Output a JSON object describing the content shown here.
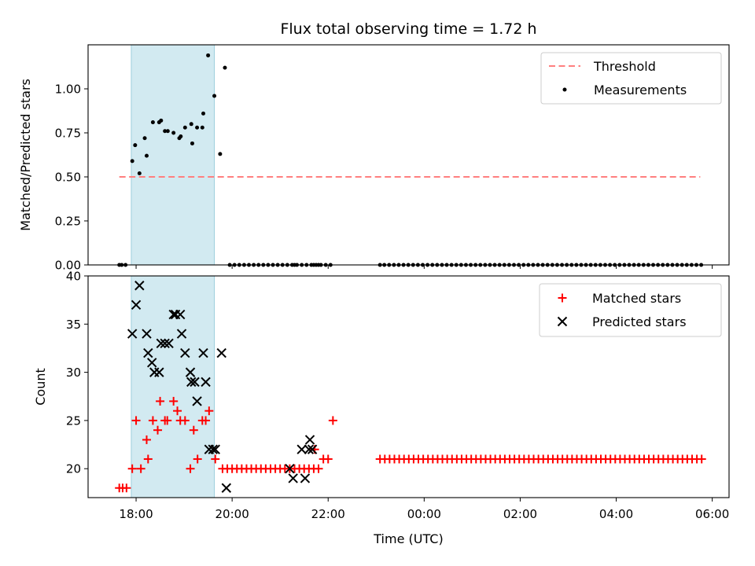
{
  "chart_data": [
    {
      "type": "scatter",
      "title": "Flux total observing time = 1.72 h",
      "xlabel": "",
      "ylabel": "Matched/Predicted stars",
      "xlim_hours": [
        17.0,
        30.35
      ],
      "ylim": [
        0,
        1.25
      ],
      "yticks": [
        0.0,
        0.25,
        0.5,
        0.75,
        1.0
      ],
      "ytick_labels": [
        "0.00",
        "0.25",
        "0.50",
        "0.75",
        "1.00"
      ],
      "shaded_span_hours": [
        17.9,
        19.63
      ],
      "threshold": {
        "label": "Threshold",
        "value": 0.5,
        "x_range_hours": [
          17.65,
          29.75
        ],
        "color": "#ff7f7f"
      },
      "legend": {
        "placement": "upper right",
        "entries": [
          "Threshold",
          "Measurements"
        ]
      },
      "series": [
        {
          "name": "Measurements",
          "color": "#000000",
          "x_hours": [
            17.65,
            17.7,
            17.78,
            17.92,
            17.98,
            18.07,
            18.18,
            18.22,
            18.35,
            18.48,
            18.52,
            18.6,
            18.66,
            18.78,
            18.9,
            18.93,
            19.02,
            19.15,
            19.17,
            19.27,
            19.38,
            19.4,
            19.5,
            19.63,
            19.75,
            19.85,
            19.95,
            20.05,
            20.15,
            20.25,
            20.35,
            20.45,
            20.55,
            20.65,
            20.75,
            20.85,
            20.95,
            21.05,
            21.15,
            21.25,
            21.3,
            21.35,
            21.45,
            21.55,
            21.65,
            21.7,
            21.75,
            21.8,
            21.85,
            21.95,
            22.05,
            23.08,
            23.17,
            23.27,
            23.37,
            23.47,
            23.57,
            23.67,
            23.77,
            23.87,
            23.97,
            24.07,
            24.17,
            24.27,
            24.37,
            24.47,
            24.57,
            24.67,
            24.77,
            24.87,
            24.97,
            25.07,
            25.17,
            25.27,
            25.37,
            25.47,
            25.57,
            25.67,
            25.77,
            25.87,
            25.97,
            26.07,
            26.17,
            26.27,
            26.37,
            26.47,
            26.57,
            26.67,
            26.77,
            26.87,
            26.97,
            27.07,
            27.17,
            27.27,
            27.37,
            27.47,
            27.57,
            27.67,
            27.77,
            27.87,
            27.97,
            28.07,
            28.17,
            28.27,
            28.37,
            28.47,
            28.57,
            28.67,
            28.77,
            28.87,
            28.97,
            29.07,
            29.17,
            29.27,
            29.37,
            29.47,
            29.57,
            29.67,
            29.77
          ],
          "y": [
            0,
            0,
            0,
            0.59,
            0.68,
            0.52,
            0.72,
            0.62,
            0.81,
            0.81,
            0.82,
            0.76,
            0.76,
            0.75,
            0.72,
            0.73,
            0.78,
            0.8,
            0.69,
            0.78,
            0.78,
            0.86,
            1.19,
            0.96,
            0.63,
            1.12,
            0,
            0,
            0,
            0,
            0,
            0,
            0,
            0,
            0,
            0,
            0,
            0,
            0,
            0,
            0,
            0,
            0,
            0,
            0,
            0,
            0,
            0,
            0,
            0,
            0,
            0,
            0,
            0,
            0,
            0,
            0,
            0,
            0,
            0,
            0,
            0,
            0,
            0,
            0,
            0,
            0,
            0,
            0,
            0,
            0,
            0,
            0,
            0,
            0,
            0,
            0,
            0,
            0,
            0,
            0,
            0,
            0,
            0,
            0,
            0,
            0,
            0,
            0,
            0,
            0,
            0,
            0,
            0,
            0,
            0,
            0,
            0,
            0,
            0,
            0,
            0,
            0,
            0,
            0,
            0,
            0,
            0,
            0,
            0,
            0,
            0,
            0,
            0,
            0,
            0,
            0,
            0,
            0
          ]
        }
      ]
    },
    {
      "type": "scatter",
      "title": "",
      "xlabel": "Time (UTC)",
      "ylabel": "Count",
      "xlim_hours": [
        17.0,
        30.35
      ],
      "ylim": [
        17,
        40
      ],
      "yticks": [
        20,
        25,
        30,
        35,
        40
      ],
      "ytick_labels": [
        "20",
        "25",
        "30",
        "35",
        "40"
      ],
      "xticks_hours": [
        18,
        20,
        22,
        24,
        26,
        28,
        30
      ],
      "xtick_labels": [
        "18:00",
        "20:00",
        "22:00",
        "00:00",
        "02:00",
        "04:00",
        "06:00"
      ],
      "shaded_span_hours": [
        17.9,
        19.63
      ],
      "legend": {
        "placement": "upper right",
        "entries": [
          "Matched stars",
          "Predicted stars"
        ]
      },
      "series": [
        {
          "name": "Matched stars",
          "color": "#ff0000",
          "marker": "plus",
          "x_hours": [
            17.65,
            17.72,
            17.8,
            17.92,
            18.0,
            18.1,
            18.22,
            18.25,
            18.35,
            18.45,
            18.5,
            18.6,
            18.65,
            18.78,
            18.86,
            18.92,
            19.02,
            19.13,
            19.2,
            19.28,
            19.38,
            19.45,
            19.52,
            19.65,
            19.8,
            19.9,
            20.0,
            20.1,
            20.2,
            20.3,
            20.4,
            20.5,
            20.6,
            20.7,
            20.8,
            20.9,
            21.0,
            21.1,
            21.2,
            21.3,
            21.4,
            21.5,
            21.6,
            21.7,
            21.72,
            21.8,
            21.9,
            22.0,
            22.1,
            23.08,
            23.18,
            23.28,
            23.38,
            23.48,
            23.58,
            23.68,
            23.78,
            23.88,
            23.98,
            24.08,
            24.18,
            24.28,
            24.38,
            24.48,
            24.58,
            24.68,
            24.78,
            24.88,
            24.98,
            25.08,
            25.18,
            25.28,
            25.38,
            25.48,
            25.58,
            25.68,
            25.78,
            25.88,
            25.98,
            26.08,
            26.18,
            26.28,
            26.38,
            26.48,
            26.58,
            26.68,
            26.78,
            26.88,
            26.98,
            27.08,
            27.18,
            27.28,
            27.38,
            27.48,
            27.58,
            27.68,
            27.78,
            27.88,
            27.98,
            28.08,
            28.18,
            28.28,
            28.38,
            28.48,
            28.58,
            28.68,
            28.78,
            28.88,
            28.98,
            29.08,
            29.18,
            29.28,
            29.38,
            29.48,
            29.58,
            29.68,
            29.78
          ],
          "y": [
            18,
            18,
            18,
            20,
            25,
            20,
            23,
            21,
            25,
            24,
            27,
            25,
            25,
            27,
            26,
            25,
            25,
            20,
            24,
            21,
            25,
            25,
            26,
            21,
            20,
            20,
            20,
            20,
            20,
            20,
            20,
            20,
            20,
            20,
            20,
            20,
            20,
            20,
            20,
            20,
            20,
            20,
            20,
            20,
            22,
            20,
            21,
            21,
            25,
            21,
            21,
            21,
            21,
            21,
            21,
            21,
            21,
            21,
            21,
            21,
            21,
            21,
            21,
            21,
            21,
            21,
            21,
            21,
            21,
            21,
            21,
            21,
            21,
            21,
            21,
            21,
            21,
            21,
            21,
            21,
            21,
            21,
            21,
            21,
            21,
            21,
            21,
            21,
            21,
            21,
            21,
            21,
            21,
            21,
            21,
            21,
            21,
            21,
            21,
            21,
            21,
            21,
            21,
            21,
            21,
            21,
            21,
            21,
            21,
            21,
            21,
            21,
            21,
            21,
            21,
            21,
            21
          ]
        },
        {
          "name": "Predicted stars",
          "color": "#000000",
          "marker": "x",
          "x_hours": [
            17.92,
            18.0,
            18.07,
            18.22,
            18.25,
            18.33,
            18.38,
            18.48,
            18.52,
            18.6,
            18.68,
            18.78,
            18.82,
            18.92,
            18.95,
            19.02,
            19.13,
            19.15,
            19.22,
            19.27,
            19.4,
            19.45,
            19.52,
            19.6,
            19.65,
            19.78,
            19.88,
            21.2,
            21.27,
            21.45,
            21.52,
            21.6,
            21.62,
            21.67
          ],
          "y": [
            34,
            37,
            39,
            34,
            32,
            31,
            30,
            30,
            33,
            33,
            33,
            36,
            36,
            36,
            34,
            32,
            30,
            29,
            29,
            27,
            32,
            29,
            22,
            22,
            22,
            32,
            18,
            20,
            19,
            22,
            19,
            22,
            23,
            22
          ]
        }
      ]
    }
  ]
}
